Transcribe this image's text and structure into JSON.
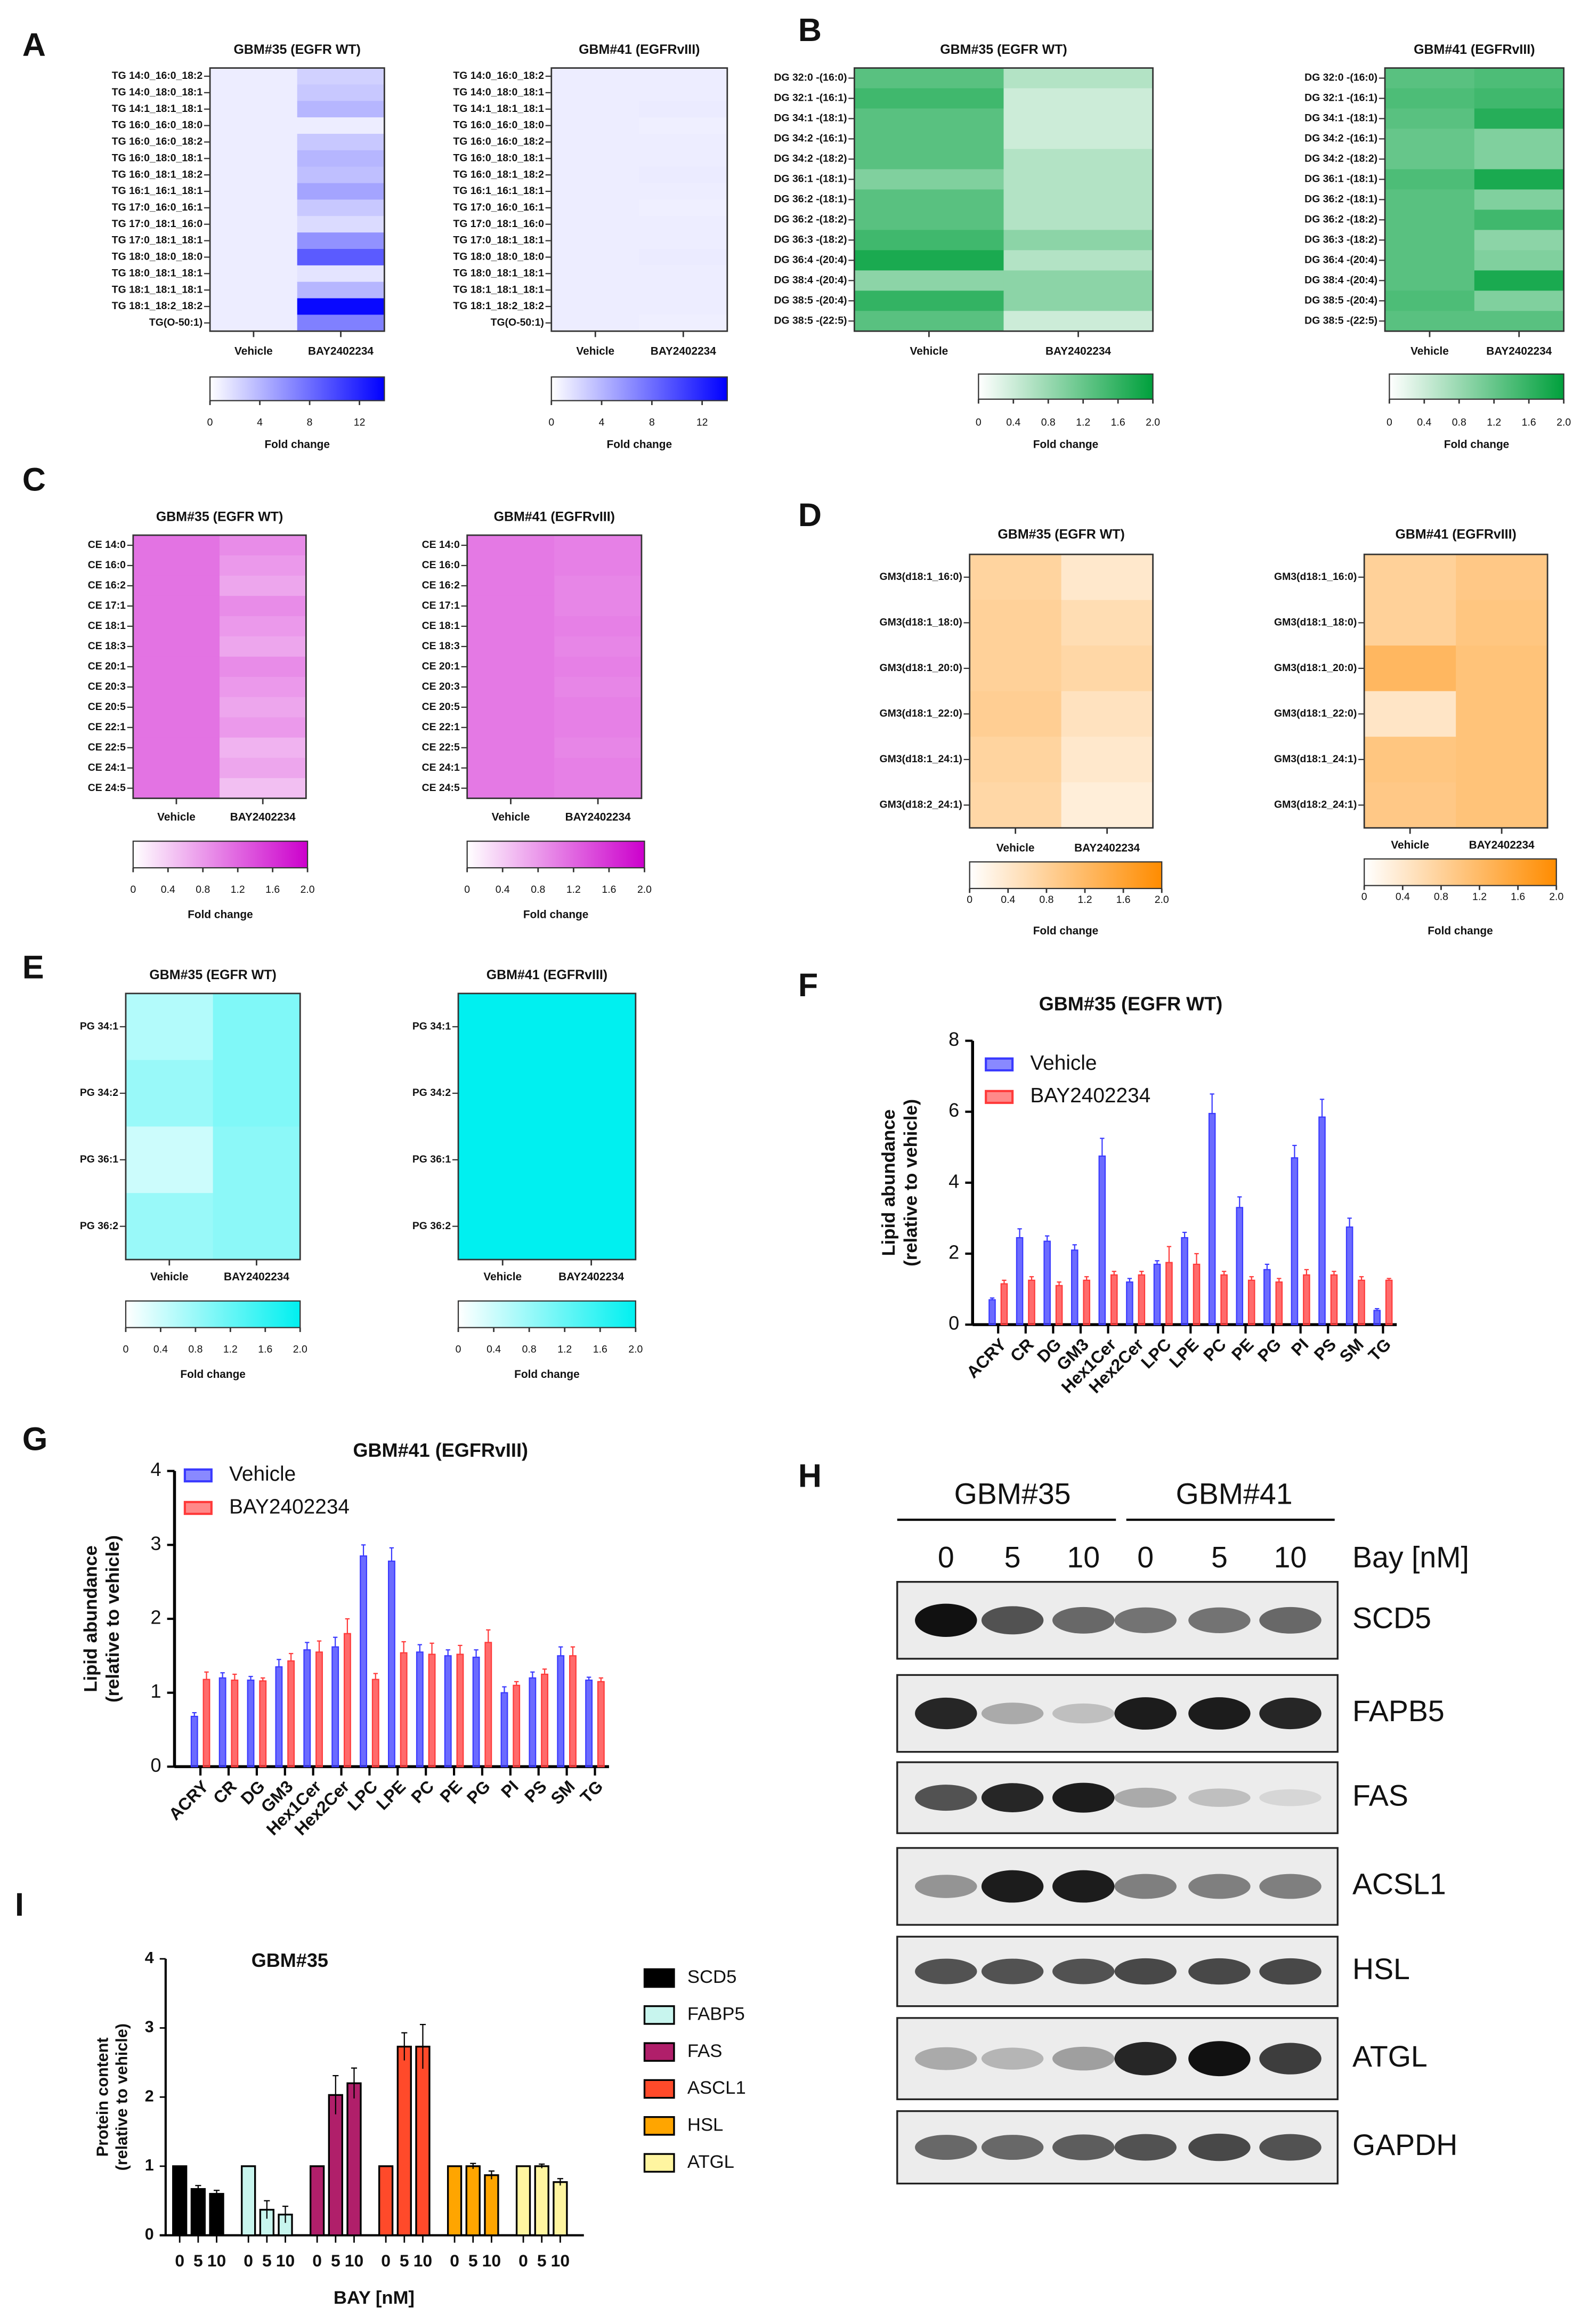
{
  "panel_letters": [
    "A",
    "B",
    "C",
    "D",
    "E",
    "F",
    "G",
    "H",
    "I"
  ],
  "heatmaps": [
    {
      "panel": "A",
      "title": "GBM#35 (EGFR WT)",
      "columns": [
        "Vehicle",
        "BAY2402234"
      ],
      "rows": [
        "TG 14:0_16:0_18:2",
        "TG 14:0_18:0_18:1",
        "TG 14:1_18:1_18:1",
        "TG 16:0_16:0_18:0",
        "TG 16:0_16:0_18:2",
        "TG 16:0_18:0_18:1",
        "TG 16:0_18:1_18:2",
        "TG 16:1_16:1_18:1",
        "TG 17:0_16:0_16:1",
        "TG 17:0_18:1_16:0",
        "TG 17:0_18:1_18:1",
        "TG 18:0_18:0_18:0",
        "TG 18:0_18:1_18:1",
        "TG 18:1_18:1_18:1",
        "TG 18:1_18:2_18:2",
        "TG(O-50:1)"
      ],
      "values": [
        [
          1,
          2.5
        ],
        [
          1,
          3
        ],
        [
          1,
          4
        ],
        [
          1,
          1
        ],
        [
          1,
          3
        ],
        [
          1,
          4
        ],
        [
          1,
          3.5
        ],
        [
          1,
          5
        ],
        [
          1,
          3
        ],
        [
          1,
          2
        ],
        [
          1,
          6
        ],
        [
          1,
          9
        ],
        [
          1,
          1.5
        ],
        [
          1,
          4
        ],
        [
          1,
          13.5
        ],
        [
          1,
          7
        ]
      ],
      "color": "#0000ff",
      "max": 14,
      "ticks": [
        "0",
        "4",
        "8",
        "12"
      ],
      "colorbar_label": "Fold change"
    },
    {
      "panel": "A",
      "title": "GBM#41 (EGFRvIII)",
      "columns": [
        "Vehicle",
        "BAY2402234"
      ],
      "rows": [
        "TG 14:0_16:0_18:2",
        "TG 14:0_18:0_18:1",
        "TG 14:1_18:1_18:1",
        "TG 16:0_16:0_18:0",
        "TG 16:0_16:0_18:2",
        "TG 16:0_18:0_18:1",
        "TG 16:0_18:1_18:2",
        "TG 16:1_16:1_18:1",
        "TG 17:0_16:0_16:1",
        "TG 17:0_18:1_16:0",
        "TG 17:0_18:1_18:1",
        "TG 18:0_18:0_18:0",
        "TG 18:0_18:1_18:1",
        "TG 18:1_18:1_18:1",
        "TG 18:1_18:2_18:2",
        "TG(O-50:1)"
      ],
      "values": [
        [
          1,
          1
        ],
        [
          1,
          1
        ],
        [
          1,
          1.1
        ],
        [
          1,
          0.9
        ],
        [
          1,
          1
        ],
        [
          1,
          1
        ],
        [
          1,
          1.1
        ],
        [
          1,
          1
        ],
        [
          1,
          0.9
        ],
        [
          1,
          1
        ],
        [
          1,
          1
        ],
        [
          1,
          1.1
        ],
        [
          1,
          1
        ],
        [
          1,
          1
        ],
        [
          1,
          1
        ],
        [
          1,
          0.9
        ]
      ],
      "color": "#0000ff",
      "max": 14,
      "ticks": [
        "0",
        "4",
        "8",
        "12"
      ],
      "colorbar_label": "Fold change"
    },
    {
      "panel": "B",
      "title": "GBM#35 (EGFR WT)",
      "columns": [
        "Vehicle",
        "BAY2402234"
      ],
      "rows": [
        "DG 32:0 -(16:0)",
        "DG 32:1 -(16:1)",
        "DG 34:1 -(18:1)",
        "DG 34:2 -(16:1)",
        "DG 34:2 -(18:2)",
        "DG 36:1 -(18:1)",
        "DG 36:2 -(18:1)",
        "DG 36:2 -(18:2)",
        "DG 36:3 -(18:2)",
        "DG 36:4 -(20:4)",
        "DG 38:4 -(20:4)",
        "DG 38:5 -(20:4)",
        "DG 38:5 -(22:5)"
      ],
      "values": [
        [
          1.3,
          0.6
        ],
        [
          1.5,
          0.4
        ],
        [
          1.3,
          0.4
        ],
        [
          1.3,
          0.4
        ],
        [
          1.3,
          0.6
        ],
        [
          1.0,
          0.6
        ],
        [
          1.3,
          0.6
        ],
        [
          1.3,
          0.6
        ],
        [
          1.5,
          0.9
        ],
        [
          1.8,
          0.6
        ],
        [
          0.9,
          0.9
        ],
        [
          1.6,
          0.9
        ],
        [
          1.3,
          0.4
        ]
      ],
      "color": "#00a03c",
      "max": 2,
      "ticks": [
        "0",
        "0.4",
        "0.8",
        "1.2",
        "1.6",
        "2.0"
      ],
      "colorbar_label": "Fold change"
    },
    {
      "panel": "B",
      "title": "GBM#41 (EGFRvIII)",
      "columns": [
        "Vehicle",
        "BAY2402234"
      ],
      "rows": [
        "DG 32:0 -(16:0)",
        "DG 32:1 -(16:1)",
        "DG 34:1 -(18:1)",
        "DG 34:2 -(16:1)",
        "DG 34:2 -(18:2)",
        "DG 36:1 -(18:1)",
        "DG 36:2 -(18:1)",
        "DG 36:2 -(18:2)",
        "DG 36:3 -(18:2)",
        "DG 36:4 -(20:4)",
        "DG 38:4 -(20:4)",
        "DG 38:5 -(20:4)",
        "DG 38:5 -(22:5)"
      ],
      "values": [
        [
          1.3,
          1.4
        ],
        [
          1.4,
          1.5
        ],
        [
          1.3,
          1.7
        ],
        [
          1.2,
          1.0
        ],
        [
          1.2,
          1.0
        ],
        [
          1.4,
          1.8
        ],
        [
          1.3,
          1.0
        ],
        [
          1.3,
          1.5
        ],
        [
          1.3,
          0.9
        ],
        [
          1.3,
          1.0
        ],
        [
          1.3,
          1.8
        ],
        [
          1.4,
          1.0
        ],
        [
          1.3,
          1.3
        ]
      ],
      "color": "#00a03c",
      "max": 2,
      "ticks": [
        "0",
        "0.4",
        "0.8",
        "1.2",
        "1.6",
        "2.0"
      ],
      "colorbar_label": "Fold change"
    },
    {
      "panel": "C",
      "title": "GBM#35 (EGFR WT)",
      "columns": [
        "Vehicle",
        "BAY2402234"
      ],
      "rows": [
        "CE 14:0",
        "CE 16:0",
        "CE 16:2",
        "CE 17:1",
        "CE 18:1",
        "CE 18:3",
        "CE 20:1",
        "CE 20:3",
        "CE 20:5",
        "CE 22:1",
        "CE 22:5",
        "CE 24:1",
        "CE 24:5"
      ],
      "values": [
        [
          1.1,
          0.9
        ],
        [
          1.1,
          0.8
        ],
        [
          1.1,
          0.7
        ],
        [
          1.1,
          0.9
        ],
        [
          1.1,
          0.8
        ],
        [
          1.1,
          0.7
        ],
        [
          1.1,
          0.9
        ],
        [
          1.1,
          0.8
        ],
        [
          1.1,
          0.7
        ],
        [
          1.1,
          0.8
        ],
        [
          1.1,
          0.6
        ],
        [
          1.1,
          0.7
        ],
        [
          1.1,
          0.5
        ]
      ],
      "color": "#cc00cc",
      "max": 2,
      "ticks": [
        "0",
        "0.4",
        "0.8",
        "1.2",
        "1.6",
        "2.0"
      ],
      "colorbar_label": "Fold change"
    },
    {
      "panel": "C",
      "title": "GBM#41 (EGFRvIII)",
      "columns": [
        "Vehicle",
        "BAY2402234"
      ],
      "rows": [
        "CE 14:0",
        "CE 16:0",
        "CE 16:2",
        "CE 17:1",
        "CE 18:1",
        "CE 18:3",
        "CE 20:1",
        "CE 20:3",
        "CE 20:5",
        "CE 22:1",
        "CE 22:5",
        "CE 24:1",
        "CE 24:5"
      ],
      "values": [
        [
          1.05,
          1.0
        ],
        [
          1.05,
          1.0
        ],
        [
          1.05,
          0.95
        ],
        [
          1.05,
          0.95
        ],
        [
          1.05,
          1.0
        ],
        [
          1.05,
          0.95
        ],
        [
          1.05,
          1.0
        ],
        [
          1.05,
          0.95
        ],
        [
          1.05,
          1.0
        ],
        [
          1.05,
          1.0
        ],
        [
          1.05,
          0.95
        ],
        [
          1.05,
          1.0
        ],
        [
          1.05,
          1.0
        ]
      ],
      "color": "#cc00cc",
      "max": 2,
      "ticks": [
        "0",
        "0.4",
        "0.8",
        "1.2",
        "1.6",
        "2.0"
      ],
      "colorbar_label": "Fold change"
    },
    {
      "panel": "D",
      "title": "GBM#35 (EGFR WT)",
      "columns": [
        "Vehicle",
        "BAY2402234"
      ],
      "rows": [
        "GM3(d18:1_16:0)",
        "GM3(d18:1_18:0)",
        "GM3(d18:1_20:0)",
        "GM3(d18:1_22:0)",
        "GM3(d18:1_24:1)",
        "GM3(d18:2_24:1)"
      ],
      "values": [
        [
          0.75,
          0.4
        ],
        [
          0.8,
          0.6
        ],
        [
          0.8,
          0.7
        ],
        [
          0.85,
          0.5
        ],
        [
          0.75,
          0.4
        ],
        [
          0.7,
          0.3
        ]
      ],
      "color": "#ff8c00",
      "max": 2,
      "ticks": [
        "0",
        "0.4",
        "0.8",
        "1.2",
        "1.6",
        "2.0"
      ],
      "colorbar_label": "Fold change"
    },
    {
      "panel": "D",
      "title": "GBM#41 (EGFRvIII)",
      "columns": [
        "Vehicle",
        "BAY2402234"
      ],
      "rows": [
        "GM3(d18:1_16:0)",
        "GM3(d18:1_18:0)",
        "GM3(d18:1_20:0)",
        "GM3(d18:1_22:0)",
        "GM3(d18:1_24:1)",
        "GM3(d18:2_24:1)"
      ],
      "values": [
        [
          0.8,
          0.95
        ],
        [
          0.8,
          1.0
        ],
        [
          1.25,
          1.05
        ],
        [
          0.45,
          1.05
        ],
        [
          1.0,
          1.05
        ],
        [
          0.95,
          1.05
        ]
      ],
      "color": "#ff8c00",
      "max": 2,
      "ticks": [
        "0",
        "0.4",
        "0.8",
        "1.2",
        "1.6",
        "2.0"
      ],
      "colorbar_label": "Fold change"
    },
    {
      "panel": "E",
      "title": "GBM#35 (EGFR WT)",
      "columns": [
        "Vehicle",
        "BAY2402234"
      ],
      "rows": [
        "PG 34:1",
        "PG 34:2",
        "PG 36:1",
        "PG 36:2"
      ],
      "values": [
        [
          0.6,
          1.0
        ],
        [
          0.8,
          1.0
        ],
        [
          0.4,
          0.9
        ],
        [
          0.8,
          0.9
        ]
      ],
      "color": "#00f0f0",
      "max": 2,
      "ticks": [
        "0",
        "0.4",
        "0.8",
        "1.2",
        "1.6",
        "2.0"
      ],
      "colorbar_label": "Fold change"
    },
    {
      "panel": "E",
      "title": "GBM#41 (EGFRvIII)",
      "columns": [
        "Vehicle",
        "BAY2402234"
      ],
      "rows": [
        "PG 34:1",
        "PG 34:2",
        "PG 36:1",
        "PG 36:2"
      ],
      "values": [
        [
          2,
          2
        ],
        [
          2,
          2
        ],
        [
          2,
          2
        ],
        [
          2,
          2
        ]
      ],
      "color": "#00f0f0",
      "max": 2,
      "ticks": [
        "0",
        "0.4",
        "0.8",
        "1.2",
        "1.6",
        "2.0"
      ],
      "colorbar_label": "Fold change"
    }
  ],
  "chart_data": [
    {
      "panel": "F",
      "type": "bar",
      "title": "GBM#35 (EGFR WT)",
      "ylabel": [
        "Lipid abundance",
        "(relative to vehicle)"
      ],
      "ylim": [
        0,
        8
      ],
      "yticks": [
        "0",
        "2",
        "4",
        "6",
        "8"
      ],
      "legend": "top-left",
      "categories": [
        "ACRY",
        "CR",
        "DG",
        "GM3",
        "Hex1Cer",
        "Hex2Cer",
        "LPC",
        "LPE",
        "PC",
        "PE",
        "PG",
        "PI",
        "PS",
        "SM",
        "TG"
      ],
      "series": [
        {
          "name": "Vehicle",
          "color": "#3a3aff",
          "values": [
            0.7,
            2.45,
            2.35,
            2.1,
            4.75,
            1.2,
            1.7,
            2.45,
            5.95,
            3.3,
            1.55,
            4.7,
            5.85,
            2.75,
            0.4
          ],
          "errors": [
            0.05,
            0.25,
            0.15,
            0.15,
            0.5,
            0.1,
            0.1,
            0.15,
            0.55,
            0.3,
            0.15,
            0.35,
            0.5,
            0.25,
            0.05
          ]
        },
        {
          "name": "BAY2402234",
          "color": "#ff3a3a",
          "values": [
            1.15,
            1.25,
            1.1,
            1.25,
            1.4,
            1.4,
            1.75,
            1.7,
            1.4,
            1.25,
            1.2,
            1.4,
            1.4,
            1.25,
            1.25
          ],
          "errors": [
            0.1,
            0.1,
            0.1,
            0.1,
            0.1,
            0.1,
            0.45,
            0.3,
            0.1,
            0.1,
            0.1,
            0.15,
            0.1,
            0.1,
            0.05
          ]
        }
      ]
    },
    {
      "panel": "G",
      "type": "bar",
      "title": "GBM#41 (EGFRvIII)",
      "ylabel": [
        "Lipid abundance",
        "(relative to vehicle)"
      ],
      "ylim": [
        0,
        4
      ],
      "yticks": [
        "0",
        "1",
        "2",
        "3",
        "4"
      ],
      "legend": "top-left",
      "categories": [
        "ACRY",
        "CR",
        "DG",
        "GM3",
        "Hex1Cer",
        "Hex2Cer",
        "LPC",
        "LPE",
        "PC",
        "PE",
        "PG",
        "PI",
        "PS",
        "SM",
        "TG"
      ],
      "series": [
        {
          "name": "Vehicle",
          "color": "#3a3aff",
          "values": [
            0.68,
            1.2,
            1.17,
            1.35,
            1.58,
            1.62,
            2.85,
            2.78,
            1.55,
            1.5,
            1.48,
            1.0,
            1.2,
            1.5,
            1.17
          ],
          "errors": [
            0.05,
            0.07,
            0.05,
            0.1,
            0.1,
            0.13,
            0.15,
            0.18,
            0.1,
            0.08,
            0.1,
            0.08,
            0.08,
            0.12,
            0.04
          ]
        },
        {
          "name": "BAY2402234",
          "color": "#ff3a3a",
          "values": [
            1.18,
            1.17,
            1.16,
            1.43,
            1.55,
            1.8,
            1.18,
            1.54,
            1.52,
            1.52,
            1.68,
            1.1,
            1.25,
            1.5,
            1.15
          ],
          "errors": [
            0.1,
            0.08,
            0.04,
            0.1,
            0.15,
            0.2,
            0.08,
            0.15,
            0.15,
            0.12,
            0.17,
            0.05,
            0.07,
            0.12,
            0.05
          ]
        }
      ]
    },
    {
      "panel": "I",
      "type": "bar",
      "title": "GBM#35",
      "ylabel": [
        "Protein content",
        "(relative to vehicle)"
      ],
      "xlabel": "BAY [nM]",
      "ylim": [
        0,
        4
      ],
      "yticks": [
        "0",
        "1",
        "2",
        "3",
        "4"
      ],
      "legend": "right",
      "dose_labels": [
        "0",
        "5",
        "10"
      ],
      "groups": [
        {
          "name": "SCD5",
          "color": "#000000",
          "values": [
            1,
            0.67,
            0.6
          ],
          "errors": [
            0,
            0.05,
            0.05
          ]
        },
        {
          "name": "FABP5",
          "color": "#c8f5ee",
          "values": [
            1,
            0.37,
            0.3
          ],
          "errors": [
            0,
            0.13,
            0.12
          ]
        },
        {
          "name": "FAS",
          "color": "#b01f6a",
          "values": [
            1,
            2.03,
            2.2
          ],
          "errors": [
            0,
            0.28,
            0.22
          ]
        },
        {
          "name": "ASCL1",
          "color": "#ff4a2a",
          "values": [
            1,
            2.73,
            2.73
          ],
          "errors": [
            0,
            0.2,
            0.32
          ]
        },
        {
          "name": "HSL",
          "color": "#ffa500",
          "values": [
            1,
            1,
            0.87
          ],
          "errors": [
            0,
            0.04,
            0.06
          ]
        },
        {
          "name": "ATGL",
          "color": "#fff5a0",
          "values": [
            1,
            1,
            0.77
          ],
          "errors": [
            0,
            0.03,
            0.05
          ]
        }
      ]
    }
  ],
  "western_blot": {
    "panel": "H",
    "groups": [
      "GBM#35",
      "GBM#41"
    ],
    "lanes": [
      "0",
      "5",
      "10",
      "0",
      "5",
      "10"
    ],
    "dose_label": "Bay [nM]",
    "proteins": [
      {
        "name": "SCD5",
        "intensity": [
          1,
          0.7,
          0.6,
          0.55,
          0.55,
          0.6
        ]
      },
      {
        "name": "FAPB5",
        "intensity": [
          0.9,
          0.3,
          0.2,
          0.95,
          0.95,
          0.9
        ]
      },
      {
        "name": "FAS",
        "intensity": [
          0.7,
          0.9,
          0.95,
          0.3,
          0.2,
          0.1
        ]
      },
      {
        "name": "ACSL1",
        "intensity": [
          0.4,
          0.95,
          0.95,
          0.5,
          0.5,
          0.5
        ]
      },
      {
        "name": "HSL",
        "intensity": [
          0.7,
          0.7,
          0.7,
          0.75,
          0.75,
          0.75
        ]
      },
      {
        "name": "ATGL",
        "intensity": [
          0.3,
          0.25,
          0.35,
          0.9,
          1,
          0.8
        ]
      },
      {
        "name": "GAPDH",
        "intensity": [
          0.6,
          0.6,
          0.65,
          0.7,
          0.75,
          0.7
        ]
      }
    ]
  }
}
